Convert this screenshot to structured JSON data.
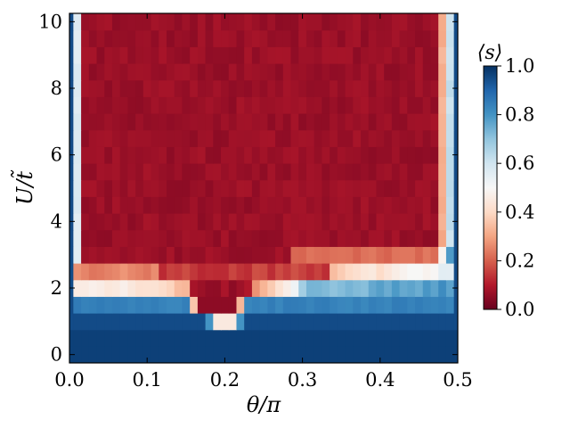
{
  "chart_data": {
    "type": "heatmap",
    "title": "",
    "xlabel": "θ/π",
    "ylabel": "U/t̃",
    "xlim": [
      0.0,
      0.5
    ],
    "ylim": [
      -0.25,
      10.25
    ],
    "x_ticks": [
      "0.0",
      "0.1",
      "0.2",
      "0.3",
      "0.4",
      "0.5"
    ],
    "y_ticks": [
      "0",
      "2",
      "4",
      "6",
      "8",
      "10"
    ],
    "colorbar": {
      "label": "⟨s⟩",
      "colormap": "RdBu",
      "range": [
        0.0,
        1.0
      ],
      "ticks": [
        "0.0",
        "0.2",
        "0.4",
        "0.6",
        "0.8",
        "1.0"
      ]
    },
    "x_resolution": 0.01,
    "u_rows": [
      0.0,
      0.5,
      1.0,
      1.5,
      2.0,
      2.5,
      3.0,
      3.5,
      4.0,
      4.5,
      5.0,
      5.5,
      6.0,
      6.5,
      7.0,
      7.5,
      8.0,
      8.5,
      9.0,
      9.5,
      10.0
    ],
    "regions": [
      {
        "description": "U<=0.5: s≈1 for all θ",
        "u_max": 0.5,
        "value": 1.0
      },
      {
        "description": "U=1: s≈1 except dip near θ=0.2",
        "u": 1.0,
        "dip_center": 0.2,
        "dip_value": 0.45
      },
      {
        "description": "U=1.5: s≈0.85 except strong dip near θ=0.19",
        "u": 1.5,
        "dip_center": 0.19,
        "dip_value": 0.05
      },
      {
        "description": "U=2: s≈0.45 at low θ, s≈0.75 for θ>0.3",
        "u": 2.0
      },
      {
        "description": "U>=2.5: s≈0.05 interior, edges near 0 and 0.5 rise to 1",
        "u_min": 2.5,
        "value": 0.05
      }
    ]
  }
}
